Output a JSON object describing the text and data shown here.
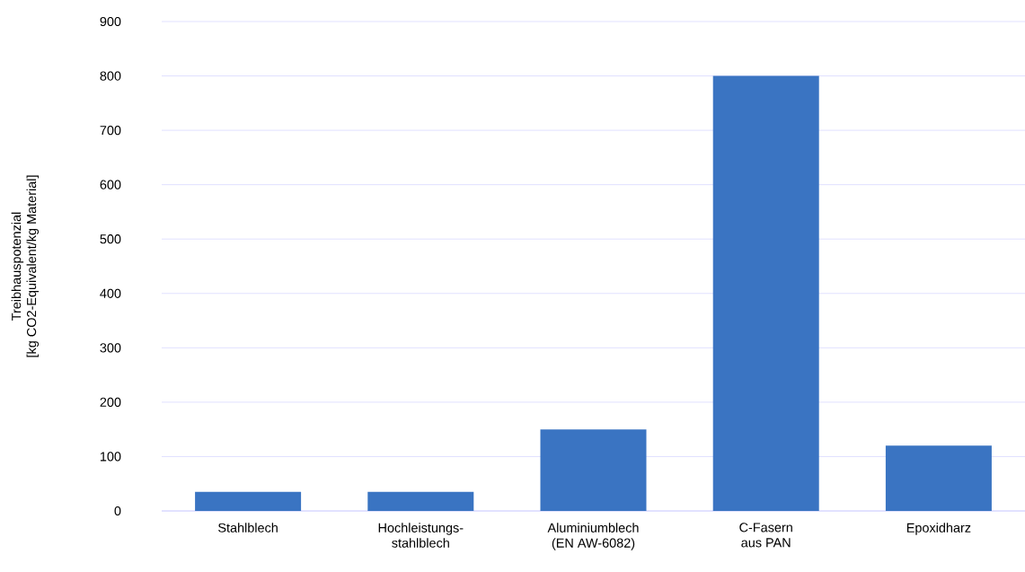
{
  "chart_data": {
    "type": "bar",
    "ylabel": "Treibhauspotenzial\n[kg CO2-Equivalent/kg Material]",
    "categories": [
      "Stahlblech",
      "Hochleistungs-\nstahlblech",
      "Aluminiumblech\n(EN AW-6082)",
      "C-Fasern\naus PAN",
      "Epoxidharz"
    ],
    "values": [
      35,
      35,
      150,
      800,
      120
    ],
    "color": "#3a74c2",
    "ylim": [
      0,
      900
    ],
    "yticks": [
      0,
      100,
      200,
      300,
      400,
      500,
      600,
      700,
      800,
      900
    ],
    "grid": "y"
  }
}
